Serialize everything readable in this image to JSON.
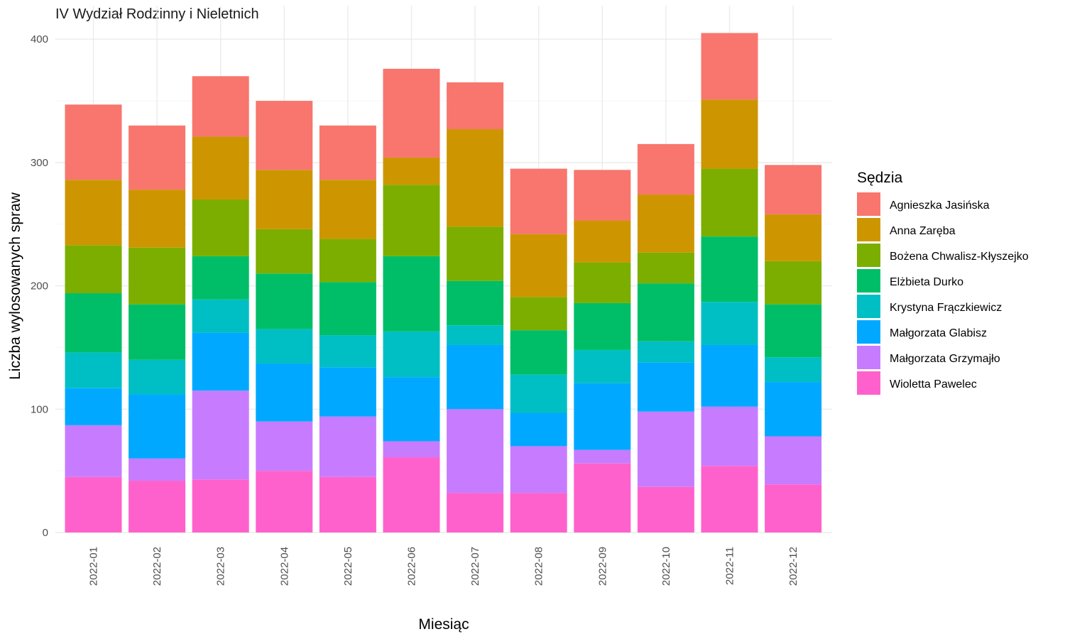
{
  "chart_data": {
    "type": "bar",
    "stacked": true,
    "title": "IV Wydział Rodzinny i Nieletnich",
    "xlabel": "Miesiąc",
    "ylabel": "Liczba wylosowanych spraw",
    "ylim": [
      0,
      420
    ],
    "yticks": [
      0,
      100,
      200,
      300,
      400
    ],
    "grid": true,
    "legend_title": "Sędzia",
    "legend_position": "right",
    "categories": [
      "2022-01",
      "2022-02",
      "2022-03",
      "2022-04",
      "2022-05",
      "2022-06",
      "2022-07",
      "2022-08",
      "2022-09",
      "2022-10",
      "2022-11",
      "2022-12"
    ],
    "series": [
      {
        "name": "Agnieszka Jasińska",
        "color": "#F8766D",
        "values": [
          61,
          52,
          49,
          56,
          44,
          72,
          38,
          53,
          41,
          41,
          54,
          40
        ]
      },
      {
        "name": "Anna Zaręba",
        "color": "#CD9600",
        "values": [
          53,
          47,
          51,
          48,
          48,
          22,
          79,
          51,
          34,
          47,
          56,
          38
        ]
      },
      {
        "name": "Bożena Chwalisz-Kłyszejko",
        "color": "#7CAE00",
        "values": [
          39,
          46,
          46,
          36,
          35,
          58,
          44,
          27,
          33,
          25,
          55,
          35
        ]
      },
      {
        "name": "Elżbieta Durko",
        "color": "#00BE67",
        "values": [
          48,
          45,
          35,
          45,
          43,
          61,
          36,
          36,
          38,
          47,
          53,
          43
        ]
      },
      {
        "name": "Krystyna Frączkiewicz",
        "color": "#00BFC4",
        "values": [
          29,
          28,
          27,
          28,
          26,
          37,
          16,
          31,
          27,
          17,
          35,
          20
        ]
      },
      {
        "name": "Małgorzata Glabisz",
        "color": "#00A9FF",
        "values": [
          30,
          52,
          47,
          47,
          40,
          52,
          52,
          27,
          54,
          40,
          50,
          44
        ]
      },
      {
        "name": "Małgorzata Grzymajło",
        "color": "#C77CFF",
        "values": [
          42,
          18,
          72,
          40,
          49,
          13,
          68,
          38,
          11,
          61,
          48,
          39
        ]
      },
      {
        "name": "Wioletta Pawelec",
        "color": "#FF61CC",
        "values": [
          45,
          42,
          43,
          50,
          45,
          61,
          32,
          32,
          56,
          37,
          54,
          39
        ]
      }
    ]
  }
}
